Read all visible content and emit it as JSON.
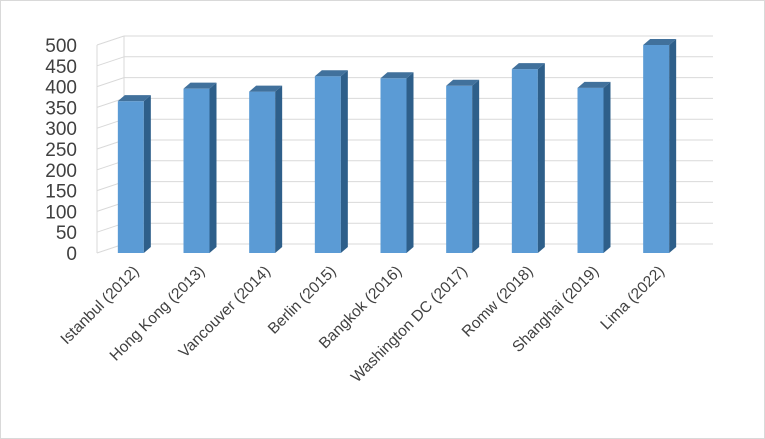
{
  "chart_data": {
    "type": "bar",
    "style": "3d-column",
    "categories": [
      "Istanbul (2012)",
      "Hong Kong (2013)",
      "Vancouver (2014)",
      "Berlin (2015)",
      "Bangkok (2016)",
      "Washington DC (2017)",
      "Romw (2018)",
      "Shanghai (2019)",
      "Lima (2022)"
    ],
    "values": [
      365,
      395,
      388,
      425,
      420,
      402,
      442,
      397,
      500
    ],
    "title": "",
    "xlabel": "",
    "ylabel": "",
    "ylim": [
      0,
      500
    ],
    "yticks": [
      "0",
      "50",
      "100",
      "150",
      "200",
      "250",
      "300",
      "350",
      "400",
      "450",
      "500"
    ],
    "grid": true,
    "legend": "none",
    "colors": {
      "bar_front": "#5b9bd5",
      "bar_side": "#2e5f8a",
      "bar_top": "#41719c",
      "grid": "#d9d9d9",
      "text": "#404040"
    }
  }
}
